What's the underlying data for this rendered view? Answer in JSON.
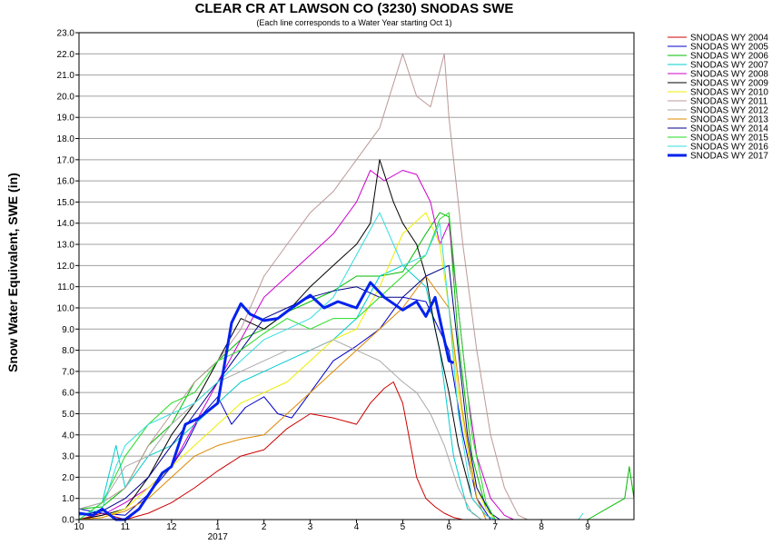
{
  "chart_data": {
    "type": "line",
    "title": "CLEAR CR AT LAWSON CO (3230) SNODAS SWE",
    "subtitle": "(Each line corresponds to a Water Year starting Oct 1)",
    "ylabel": "Snow Water Equivalent, SWE (in)",
    "xlabel": "",
    "ylim": [
      0,
      23
    ],
    "yticks": [
      "0.0",
      "1.0",
      "2.0",
      "3.0",
      "4.0",
      "5.0",
      "6.0",
      "7.0",
      "8.0",
      "9.0",
      "10.0",
      "11.0",
      "12.0",
      "13.0",
      "14.0",
      "15.0",
      "16.0",
      "17.0",
      "18.0",
      "19.0",
      "20.0",
      "21.0",
      "22.0",
      "23.0"
    ],
    "xticks": [
      "10",
      "11",
      "12",
      "1",
      "2",
      "3",
      "4",
      "5",
      "6",
      "7",
      "8",
      "9"
    ],
    "xtick_months": [
      10,
      11,
      12,
      13,
      14,
      15,
      16,
      17,
      18,
      19,
      20,
      21
    ],
    "xlim_months": [
      10,
      22
    ],
    "year_label": "2017",
    "grid": true,
    "legend": "right",
    "series": [
      {
        "name": "SNODAS WY 2004",
        "color": "#cc0000",
        "width": 1,
        "x": [
          10.0,
          10.5,
          11.0,
          11.5,
          12.0,
          12.5,
          13.0,
          13.5,
          14.0,
          14.5,
          15.0,
          15.5,
          16.0,
          16.3,
          16.6,
          16.8,
          17.0,
          17.3,
          17.5,
          17.7,
          17.9,
          18.1,
          18.3,
          18.5
        ],
        "y": [
          0.0,
          0.3,
          0.0,
          0.3,
          0.8,
          1.5,
          2.3,
          3.0,
          3.3,
          4.3,
          5.0,
          4.8,
          4.5,
          5.5,
          6.2,
          6.5,
          5.5,
          2.0,
          1.0,
          0.6,
          0.3,
          0.1,
          0.0,
          0.0
        ]
      },
      {
        "name": "SNODAS WY 2005",
        "color": "#0000cc",
        "width": 1,
        "x": [
          10.0,
          10.5,
          11.0,
          11.5,
          12.0,
          12.3,
          12.6,
          13.0,
          13.3,
          13.6,
          14.0,
          14.3,
          14.6,
          15.0,
          15.5,
          16.0,
          16.5,
          17.0,
          17.5,
          18.0,
          18.3,
          18.6,
          18.9
        ],
        "y": [
          0.5,
          0.3,
          0.2,
          1.2,
          2.5,
          3.5,
          4.8,
          5.8,
          4.5,
          5.3,
          5.8,
          5.0,
          4.8,
          6.0,
          7.5,
          8.2,
          9.0,
          10.5,
          10.3,
          8.0,
          4.0,
          1.0,
          0.0
        ]
      },
      {
        "name": "SNODAS WY 2006",
        "color": "#00bb00",
        "width": 1,
        "x": [
          10.0,
          10.5,
          11.0,
          11.5,
          12.0,
          12.5,
          13.0,
          13.5,
          14.0,
          14.5,
          15.0,
          15.5,
          16.0,
          16.5,
          17.0,
          17.5,
          17.8,
          18.0,
          18.2,
          18.5,
          18.8,
          19.0,
          21.0,
          21.8,
          21.9,
          22.0
        ],
        "y": [
          0.5,
          0.6,
          1.5,
          3.5,
          4.5,
          6.5,
          7.5,
          8.5,
          9.0,
          9.8,
          10.3,
          10.8,
          11.5,
          11.5,
          11.7,
          13.5,
          14.5,
          14.3,
          8.5,
          3.0,
          0.5,
          0.0,
          0.0,
          1.0,
          2.5,
          1.0
        ]
      },
      {
        "name": "SNODAS WY 2007",
        "color": "#00cccc",
        "width": 1,
        "x": [
          10.0,
          10.5,
          10.8,
          11.0,
          11.5,
          12.0,
          12.5,
          13.0,
          13.5,
          14.0,
          14.5,
          15.0,
          15.5,
          16.0,
          16.5,
          17.0,
          17.5,
          17.8,
          18.1,
          18.4,
          18.7
        ],
        "y": [
          0.0,
          0.8,
          3.5,
          1.5,
          3.0,
          3.5,
          4.5,
          5.5,
          6.5,
          7.0,
          7.5,
          8.0,
          8.5,
          9.5,
          11.5,
          12.0,
          11.0,
          8.0,
          3.0,
          0.5,
          0.0
        ]
      },
      {
        "name": "SNODAS WY 2008",
        "color": "#cc00cc",
        "width": 1,
        "x": [
          10.0,
          10.5,
          11.0,
          11.5,
          12.0,
          12.5,
          13.0,
          13.5,
          14.0,
          14.5,
          15.0,
          15.5,
          16.0,
          16.3,
          16.6,
          17.0,
          17.3,
          17.6,
          17.8,
          18.0,
          18.2,
          18.4,
          18.6,
          18.9,
          19.2,
          19.4
        ],
        "y": [
          0.0,
          0.2,
          0.8,
          1.5,
          2.5,
          4.5,
          6.5,
          8.5,
          10.5,
          11.5,
          12.5,
          13.5,
          15.0,
          16.5,
          16.0,
          16.5,
          16.3,
          15.0,
          13.0,
          14.0,
          10.0,
          6.0,
          3.0,
          1.0,
          0.2,
          0.0
        ]
      },
      {
        "name": "SNODAS WY 2009",
        "color": "#000000",
        "width": 1,
        "x": [
          10.0,
          10.5,
          11.0,
          11.5,
          12.0,
          12.5,
          13.0,
          13.5,
          14.0,
          14.5,
          15.0,
          15.5,
          16.0,
          16.3,
          16.5,
          16.8,
          17.0,
          17.3,
          17.5,
          17.7,
          18.0,
          18.2,
          18.5,
          18.8,
          19.0
        ],
        "y": [
          0.0,
          0.2,
          0.5,
          2.0,
          4.0,
          5.5,
          7.5,
          9.5,
          9.0,
          9.8,
          11.0,
          12.0,
          13.0,
          14.0,
          17.0,
          15.0,
          14.0,
          13.0,
          11.5,
          9.0,
          6.0,
          3.5,
          1.0,
          0.2,
          0.0
        ]
      },
      {
        "name": "SNODAS WY 2010",
        "color": "#eeee00",
        "width": 1,
        "x": [
          10.0,
          10.5,
          11.0,
          11.5,
          12.0,
          12.5,
          13.0,
          13.5,
          14.0,
          14.5,
          15.0,
          15.5,
          16.0,
          16.5,
          17.0,
          17.5,
          17.8,
          18.0,
          18.2,
          18.5,
          18.8,
          19.0
        ],
        "y": [
          0.0,
          0.1,
          0.5,
          1.5,
          2.5,
          3.5,
          4.5,
          5.5,
          6.0,
          6.5,
          7.5,
          8.5,
          9.0,
          11.0,
          13.5,
          14.5,
          13.0,
          10.0,
          6.0,
          2.0,
          0.5,
          0.0
        ]
      },
      {
        "name": "SNODAS WY 2011",
        "color": "#bc9999",
        "width": 1,
        "x": [
          10.0,
          10.5,
          11.0,
          11.5,
          12.0,
          12.5,
          13.0,
          13.5,
          14.0,
          14.5,
          15.0,
          15.5,
          16.0,
          16.5,
          17.0,
          17.3,
          17.6,
          17.9,
          18.0,
          18.3,
          18.6,
          18.9,
          19.2,
          19.5,
          19.7
        ],
        "y": [
          0.5,
          0.8,
          1.5,
          3.5,
          5.0,
          6.5,
          7.5,
          9.0,
          11.5,
          13.0,
          14.5,
          15.5,
          17.0,
          18.5,
          22.0,
          20.0,
          19.5,
          22.0,
          19.0,
          13.0,
          8.0,
          4.0,
          1.5,
          0.2,
          0.0
        ]
      },
      {
        "name": "SNODAS WY 2012",
        "color": "#aaaaaa",
        "width": 1,
        "x": [
          10.0,
          10.5,
          11.0,
          11.5,
          12.0,
          12.5,
          13.0,
          13.5,
          14.0,
          14.5,
          15.0,
          15.5,
          16.0,
          16.5,
          17.0,
          17.3,
          17.6,
          17.9,
          18.2,
          18.5,
          18.7
        ],
        "y": [
          0.5,
          0.8,
          2.5,
          3.0,
          4.5,
          5.5,
          6.5,
          7.0,
          7.5,
          8.0,
          8.0,
          8.5,
          8.0,
          7.5,
          6.5,
          6.0,
          5.0,
          3.5,
          1.5,
          0.3,
          0.0
        ]
      },
      {
        "name": "SNODAS WY 2013",
        "color": "#dd8800",
        "width": 1,
        "x": [
          10.0,
          10.5,
          11.0,
          11.5,
          12.0,
          12.5,
          13.0,
          13.5,
          14.0,
          14.5,
          15.0,
          15.5,
          16.0,
          16.5,
          17.0,
          17.5,
          18.0,
          18.3,
          18.6,
          18.8
        ],
        "y": [
          0.0,
          0.1,
          0.4,
          1.0,
          2.0,
          3.0,
          3.5,
          3.8,
          4.0,
          5.0,
          6.0,
          7.0,
          8.0,
          9.0,
          10.0,
          11.5,
          10.0,
          5.0,
          1.0,
          0.0
        ]
      },
      {
        "name": "SNODAS WY 2014",
        "color": "#000088",
        "width": 1,
        "x": [
          10.0,
          10.5,
          11.0,
          11.5,
          12.0,
          12.5,
          13.0,
          13.5,
          14.0,
          14.5,
          15.0,
          15.5,
          16.0,
          16.5,
          17.0,
          17.5,
          18.0,
          18.2,
          18.4,
          18.6,
          18.9,
          19.1
        ],
        "y": [
          0.2,
          0.4,
          1.0,
          2.0,
          3.5,
          5.0,
          6.5,
          8.0,
          9.5,
          10.0,
          10.5,
          10.8,
          11.0,
          10.5,
          10.5,
          11.5,
          12.0,
          8.0,
          4.0,
          1.5,
          0.3,
          0.0
        ]
      },
      {
        "name": "SNODAS WY 2015",
        "color": "#22dd22",
        "width": 1,
        "x": [
          10.0,
          10.5,
          11.0,
          11.5,
          12.0,
          12.5,
          13.0,
          13.5,
          14.0,
          14.5,
          15.0,
          15.5,
          16.0,
          16.5,
          17.0,
          17.5,
          17.8,
          18.0,
          18.2,
          18.5,
          18.8,
          19.0
        ],
        "y": [
          0.0,
          0.8,
          3.0,
          4.5,
          5.5,
          6.0,
          7.5,
          8.0,
          8.8,
          9.5,
          9.0,
          9.5,
          9.5,
          10.5,
          11.5,
          12.5,
          14.2,
          14.5,
          10.0,
          4.0,
          0.8,
          0.0
        ]
      },
      {
        "name": "SNODAS WY 2016",
        "color": "#33dddd",
        "width": 1,
        "x": [
          10.0,
          10.5,
          10.8,
          11.0,
          11.5,
          12.0,
          12.5,
          13.0,
          13.5,
          14.0,
          14.5,
          15.0,
          15.5,
          16.0,
          16.5,
          17.0,
          17.5,
          17.8,
          18.0,
          18.2,
          18.5,
          18.8,
          19.0,
          20.8,
          20.9
        ],
        "y": [
          0.2,
          0.5,
          2.5,
          3.5,
          4.5,
          5.0,
          5.5,
          6.5,
          7.5,
          8.5,
          9.0,
          9.5,
          10.5,
          12.5,
          14.5,
          12.0,
          12.5,
          14.0,
          10.0,
          5.0,
          1.0,
          0.2,
          0.0,
          0.0,
          0.3
        ]
      },
      {
        "name": "SNODAS WY 2017",
        "color": "#0022ee",
        "width": 3,
        "x": [
          10.0,
          10.3,
          10.5,
          10.8,
          11.0,
          11.3,
          11.6,
          11.8,
          12.0,
          12.3,
          12.6,
          13.0,
          13.3,
          13.5,
          13.7,
          14.0,
          14.3,
          14.6,
          15.0,
          15.3,
          15.6,
          16.0,
          16.3,
          16.6,
          17.0,
          17.3,
          17.5,
          17.7,
          17.9,
          18.0,
          18.1
        ],
        "y": [
          0.3,
          0.2,
          0.5,
          0.0,
          0.0,
          0.5,
          1.5,
          2.2,
          2.5,
          4.5,
          4.8,
          5.5,
          9.3,
          10.2,
          9.7,
          9.4,
          9.5,
          10.0,
          10.6,
          10.0,
          10.3,
          10.0,
          11.2,
          10.5,
          9.9,
          10.3,
          9.6,
          10.5,
          8.5,
          7.5,
          7.4
        ]
      }
    ]
  }
}
